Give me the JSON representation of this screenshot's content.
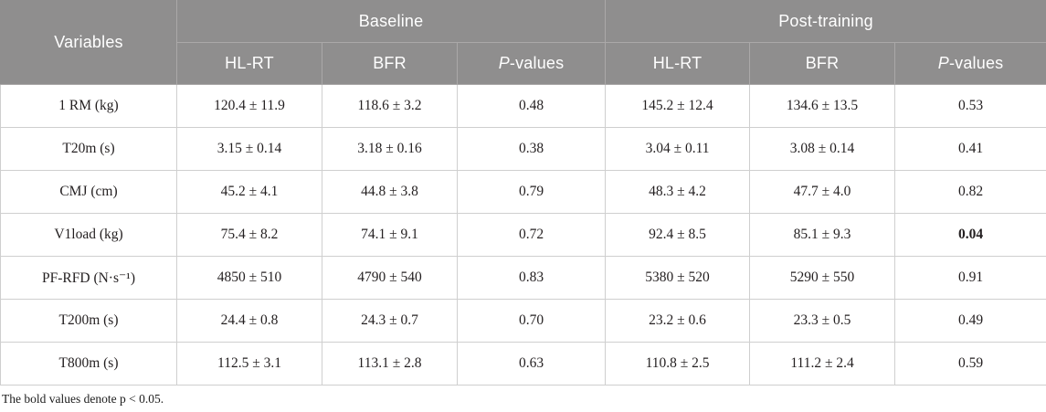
{
  "table": {
    "header": {
      "variables_label": "Variables",
      "groups": [
        {
          "label": "Baseline"
        },
        {
          "label": "Post-training"
        }
      ],
      "subheader": {
        "hlrt": "HL-RT",
        "bfr": "BFR",
        "p_italic": "P",
        "p_rest": "-values"
      }
    },
    "rows": [
      {
        "variable": "1 RM (kg)",
        "cells": [
          "120.4 ± 11.9",
          "118.6 ± 3.2",
          "0.48",
          "145.2 ± 12.4",
          "134.6 ± 13.5",
          "0.53"
        ],
        "bold": []
      },
      {
        "variable": "T20m (s)",
        "cells": [
          "3.15 ± 0.14",
          "3.18 ± 0.16",
          "0.38",
          "3.04 ± 0.11",
          "3.08 ± 0.14",
          "0.41"
        ],
        "bold": []
      },
      {
        "variable": "CMJ (cm)",
        "cells": [
          "45.2 ± 4.1",
          "44.8 ± 3.8",
          "0.79",
          "48.3 ± 4.2",
          "47.7 ± 4.0",
          "0.82"
        ],
        "bold": []
      },
      {
        "variable": "V1load (kg)",
        "cells": [
          "75.4 ± 8.2",
          "74.1 ± 9.1",
          "0.72",
          "92.4 ± 8.5",
          "85.1 ± 9.3",
          "0.04"
        ],
        "bold": [
          5
        ]
      },
      {
        "variable": "PF-RFD (N·s⁻¹)",
        "cells": [
          "4850 ± 510",
          "4790 ± 540",
          "0.83",
          "5380 ± 520",
          "5290 ± 550",
          "0.91"
        ],
        "bold": []
      },
      {
        "variable": "T200m (s)",
        "cells": [
          "24.4 ± 0.8",
          "24.3 ± 0.7",
          "0.70",
          "23.2 ± 0.6",
          "23.3 ± 0.5",
          "0.49"
        ],
        "bold": []
      },
      {
        "variable": "T800m (s)",
        "cells": [
          "112.5 ± 3.1",
          "113.1 ± 2.8",
          "0.63",
          "110.8 ± 2.5",
          "111.2 ± 2.4",
          "0.59"
        ],
        "bold": []
      }
    ],
    "footnote": "The bold values denote p < 0.05."
  },
  "colors": {
    "header_bg": "#8f8e8e",
    "header_text": "#ffffff",
    "header_divider": "#aaa8a8",
    "body_border": "#cfcfcf",
    "body_text": "#231f20"
  },
  "chart_data": {
    "type": "table",
    "title": "",
    "column_groups": [
      "Variables",
      "Baseline",
      "Baseline",
      "Baseline",
      "Post-training",
      "Post-training",
      "Post-training"
    ],
    "columns": [
      "Variables",
      "HL-RT",
      "BFR",
      "P-values",
      "HL-RT",
      "BFR",
      "P-values"
    ],
    "rows": [
      [
        "1 RM (kg)",
        "120.4 ± 11.9",
        "118.6 ± 3.2",
        "0.48",
        "145.2 ± 12.4",
        "134.6 ± 13.5",
        "0.53"
      ],
      [
        "T20m (s)",
        "3.15 ± 0.14",
        "3.18 ± 0.16",
        "0.38",
        "3.04 ± 0.11",
        "3.08 ± 0.14",
        "0.41"
      ],
      [
        "CMJ (cm)",
        "45.2 ± 4.1",
        "44.8 ± 3.8",
        "0.79",
        "48.3 ± 4.2",
        "47.7 ± 4.0",
        "0.82"
      ],
      [
        "V1load (kg)",
        "75.4 ± 8.2",
        "74.1 ± 9.1",
        "0.72",
        "92.4 ± 8.5",
        "85.1 ± 9.3",
        "0.04"
      ],
      [
        "PF-RFD (N·s⁻¹)",
        "4850 ± 510",
        "4790 ± 540",
        "0.83",
        "5380 ± 520",
        "5290 ± 550",
        "0.91"
      ],
      [
        "T200m (s)",
        "24.4 ± 0.8",
        "24.3 ± 0.7",
        "0.70",
        "23.2 ± 0.6",
        "23.3 ± 0.5",
        "0.49"
      ],
      [
        "T800m (s)",
        "112.5 ± 3.1",
        "113.1 ± 2.8",
        "0.63",
        "110.8 ± 2.5",
        "111.2 ± 2.4",
        "0.59"
      ]
    ]
  }
}
